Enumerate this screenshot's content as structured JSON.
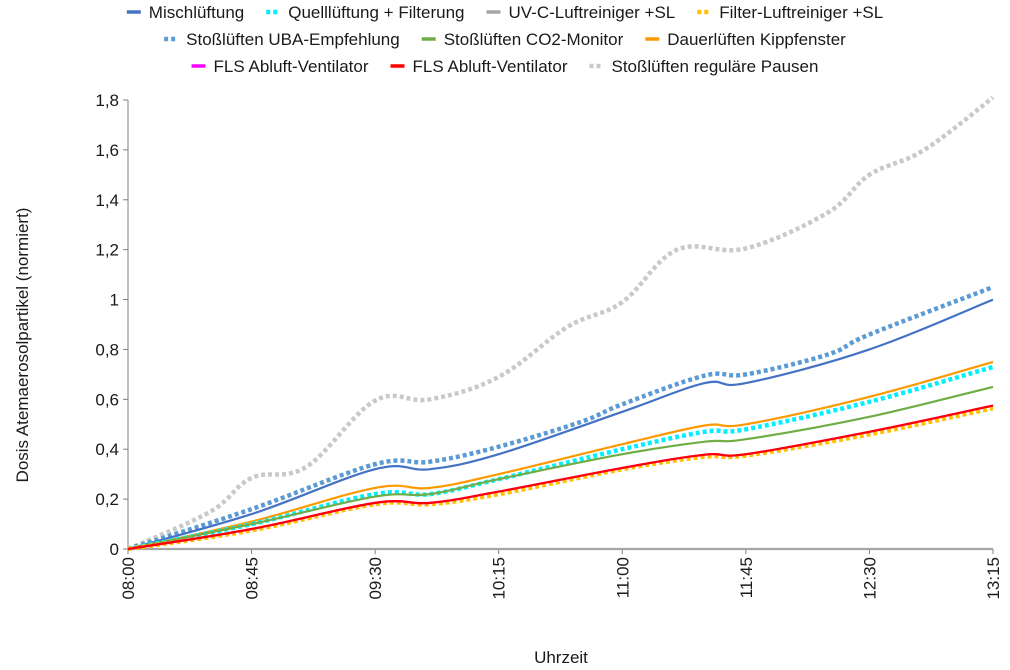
{
  "chart_data": {
    "type": "line",
    "title": "",
    "xlabel": "Uhrzeit",
    "ylabel": "Dosis Atemaerosolpartikel (normiert)",
    "x_ticks": [
      "08:00",
      "08:45",
      "09:30",
      "10:15",
      "11:00",
      "11:45",
      "12:30",
      "13:15"
    ],
    "x_range": [
      "08:00",
      "13:15"
    ],
    "y_ticks": [
      "0",
      "0,2",
      "0,4",
      "0,6",
      "0,8",
      "1",
      "1,2",
      "1,4",
      "1,6",
      "1,8"
    ],
    "ylim": [
      0,
      1.8
    ],
    "grid": false,
    "legend_position": "top",
    "series": [
      {
        "name": "Mischlüftung",
        "color": "#4472c4",
        "style": "solid",
        "points": [
          [
            "08:00",
            0
          ],
          [
            "08:45",
            0.14
          ],
          [
            "09:30",
            0.32
          ],
          [
            "09:50",
            0.32
          ],
          [
            "10:15",
            0.38
          ],
          [
            "11:00",
            0.55
          ],
          [
            "11:30",
            0.665
          ],
          [
            "11:45",
            0.665
          ],
          [
            "12:30",
            0.8
          ],
          [
            "13:15",
            1.0
          ]
        ]
      },
      {
        "name": "Quelllüftung + Filterung",
        "color": "#00f0ff",
        "style": "dotted",
        "points": [
          [
            "08:00",
            0
          ],
          [
            "08:45",
            0.1
          ],
          [
            "09:30",
            0.22
          ],
          [
            "09:50",
            0.22
          ],
          [
            "10:15",
            0.28
          ],
          [
            "11:00",
            0.4
          ],
          [
            "11:30",
            0.47
          ],
          [
            "11:45",
            0.48
          ],
          [
            "12:30",
            0.59
          ],
          [
            "13:15",
            0.73
          ]
        ]
      },
      {
        "name": "UV-C-Luftreiniger +SL",
        "color": "#a5a5a5",
        "style": "solid",
        "points": [
          [
            "08:00",
            0
          ],
          [
            "13:15",
            0
          ]
        ]
      },
      {
        "name": "Filter-Luftreiniger +SL",
        "color": "#ffc000",
        "style": "dotted",
        "points": [
          [
            "08:00",
            0
          ],
          [
            "08:45",
            0.075
          ],
          [
            "09:30",
            0.18
          ],
          [
            "09:50",
            0.18
          ],
          [
            "10:15",
            0.22
          ],
          [
            "11:00",
            0.32
          ],
          [
            "11:30",
            0.37
          ],
          [
            "11:45",
            0.375
          ],
          [
            "12:30",
            0.46
          ],
          [
            "13:15",
            0.565
          ]
        ]
      },
      {
        "name": "Stoßlüften UBA-Empfehlung",
        "color": "#5b9bd5",
        "style": "dotted",
        "points": [
          [
            "08:00",
            0
          ],
          [
            "08:45",
            0.16
          ],
          [
            "09:30",
            0.34
          ],
          [
            "09:50",
            0.35
          ],
          [
            "10:15",
            0.41
          ],
          [
            "10:45",
            0.51
          ],
          [
            "11:00",
            0.58
          ],
          [
            "11:30",
            0.695
          ],
          [
            "11:45",
            0.7
          ],
          [
            "12:15",
            0.78
          ],
          [
            "12:30",
            0.86
          ],
          [
            "13:15",
            1.05
          ]
        ]
      },
      {
        "name": "Stoßlüften CO2-Monitor",
        "color": "#70ad47",
        "style": "solid",
        "points": [
          [
            "08:00",
            0
          ],
          [
            "08:45",
            0.1
          ],
          [
            "09:30",
            0.21
          ],
          [
            "09:50",
            0.22
          ],
          [
            "10:15",
            0.28
          ],
          [
            "11:00",
            0.38
          ],
          [
            "11:30",
            0.43
          ],
          [
            "11:45",
            0.44
          ],
          [
            "12:30",
            0.53
          ],
          [
            "13:15",
            0.65
          ]
        ]
      },
      {
        "name": "Dauerlüften Kippfenster",
        "color": "#ff9900",
        "style": "solid",
        "points": [
          [
            "08:00",
            0
          ],
          [
            "08:45",
            0.11
          ],
          [
            "09:30",
            0.245
          ],
          [
            "09:50",
            0.245
          ],
          [
            "10:15",
            0.3
          ],
          [
            "11:00",
            0.42
          ],
          [
            "11:30",
            0.495
          ],
          [
            "11:45",
            0.5
          ],
          [
            "12:30",
            0.61
          ],
          [
            "13:15",
            0.75
          ]
        ]
      },
      {
        "name": "FLS Abluft-Ventilator",
        "color": "#ff00ff",
        "style": "solid",
        "points": [
          [
            "08:00",
            0
          ],
          [
            "08:45",
            0.08
          ],
          [
            "09:30",
            0.185
          ],
          [
            "09:50",
            0.185
          ],
          [
            "10:15",
            0.23
          ],
          [
            "11:00",
            0.325
          ],
          [
            "11:30",
            0.378
          ],
          [
            "11:45",
            0.38
          ],
          [
            "12:30",
            0.47
          ],
          [
            "13:15",
            0.575
          ]
        ]
      },
      {
        "name": "FLS Abluft-Ventilator",
        "color": "#ff0000",
        "style": "solid",
        "points": [
          [
            "08:00",
            0
          ],
          [
            "08:45",
            0.08
          ],
          [
            "09:30",
            0.185
          ],
          [
            "09:50",
            0.185
          ],
          [
            "10:15",
            0.23
          ],
          [
            "11:00",
            0.325
          ],
          [
            "11:30",
            0.378
          ],
          [
            "11:45",
            0.38
          ],
          [
            "12:30",
            0.47
          ],
          [
            "13:15",
            0.575
          ]
        ]
      },
      {
        "name": "Stoßlüften reguläre Pausen",
        "color": "#c9c9c9",
        "style": "dotted",
        "points": [
          [
            "08:00",
            0
          ],
          [
            "08:30",
            0.15
          ],
          [
            "08:45",
            0.285
          ],
          [
            "09:05",
            0.33
          ],
          [
            "09:30",
            0.595
          ],
          [
            "09:50",
            0.6
          ],
          [
            "10:15",
            0.69
          ],
          [
            "10:40",
            0.89
          ],
          [
            "11:00",
            0.99
          ],
          [
            "11:20",
            1.2
          ],
          [
            "11:45",
            1.205
          ],
          [
            "12:15",
            1.35
          ],
          [
            "12:30",
            1.5
          ],
          [
            "12:50",
            1.6
          ],
          [
            "13:15",
            1.81
          ]
        ]
      }
    ]
  }
}
